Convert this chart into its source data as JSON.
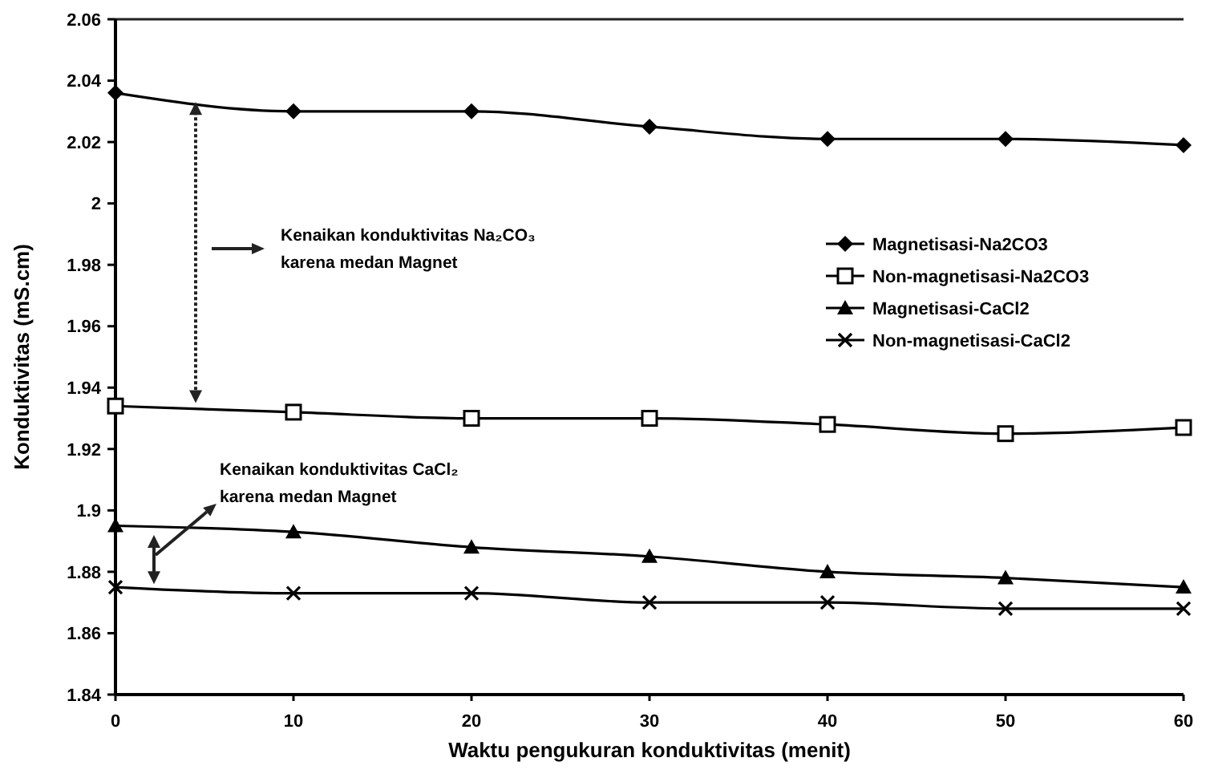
{
  "chart_data": {
    "type": "line",
    "xlabel": "Waktu pengukuran konduktivitas  (menit)",
    "ylabel": "Konduktivitas (mS.cm)",
    "x": [
      0,
      10,
      20,
      30,
      40,
      50,
      60
    ],
    "xlim": [
      0,
      60
    ],
    "xticks": [
      0,
      10,
      20,
      30,
      40,
      50,
      60
    ],
    "ylim": [
      1.84,
      2.06
    ],
    "yticks": [
      {
        "value": 1.84,
        "label": "1.84"
      },
      {
        "value": 1.86,
        "label": "1.86"
      },
      {
        "value": 1.88,
        "label": "1.88"
      },
      {
        "value": 1.9,
        "label": "1.9"
      },
      {
        "value": 1.92,
        "label": "1.92"
      },
      {
        "value": 1.94,
        "label": "1.94"
      },
      {
        "value": 1.96,
        "label": "1.96"
      },
      {
        "value": 1.98,
        "label": "1.98"
      },
      {
        "value": 2,
        "label": "2"
      },
      {
        "value": 2.02,
        "label": "2.02"
      },
      {
        "value": 2.04,
        "label": "2.04"
      },
      {
        "value": 2.06,
        "label": "2.06"
      }
    ],
    "grid": false,
    "legend": "right",
    "line_style": "solid",
    "series": [
      {
        "name": "Magnetisasi-Na2CO3",
        "color": "#000000",
        "marker": "diamond",
        "values": [
          2.036,
          2.03,
          2.03,
          2.025,
          2.021,
          2.021,
          2.019
        ]
      },
      {
        "name": "Non-magnetisasi-Na2CO3",
        "color": "#000000",
        "marker": "square",
        "values": [
          1.934,
          1.932,
          1.93,
          1.93,
          1.928,
          1.925,
          1.927
        ]
      },
      {
        "name": "Magnetisasi-CaCl2",
        "color": "#000000",
        "marker": "triangle",
        "values": [
          1.895,
          1.893,
          1.888,
          1.885,
          1.88,
          1.878,
          1.875
        ]
      },
      {
        "name": "Non-magnetisasi-CaCl2",
        "color": "#000000",
        "marker": "cross",
        "values": [
          1.875,
          1.873,
          1.873,
          1.87,
          1.87,
          1.868,
          1.868
        ]
      }
    ],
    "annotations": [
      "Kenaikan konduktivitas Na₂CO₃ karena medan Magnet",
      "Kenaikan konduktivitas CaCl₂ karena medan Magnet"
    ]
  }
}
